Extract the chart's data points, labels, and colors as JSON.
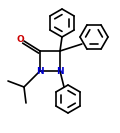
{
  "bg_color": "#ffffff",
  "bond_color": "#000000",
  "nitrogen_color": "#0000cd",
  "oxygen_color": "#cc0000",
  "line_width": 1.2,
  "figsize": [
    1.2,
    1.33
  ],
  "dpi": 100,
  "xlim": [
    0,
    120
  ],
  "ylim": [
    0,
    133
  ]
}
